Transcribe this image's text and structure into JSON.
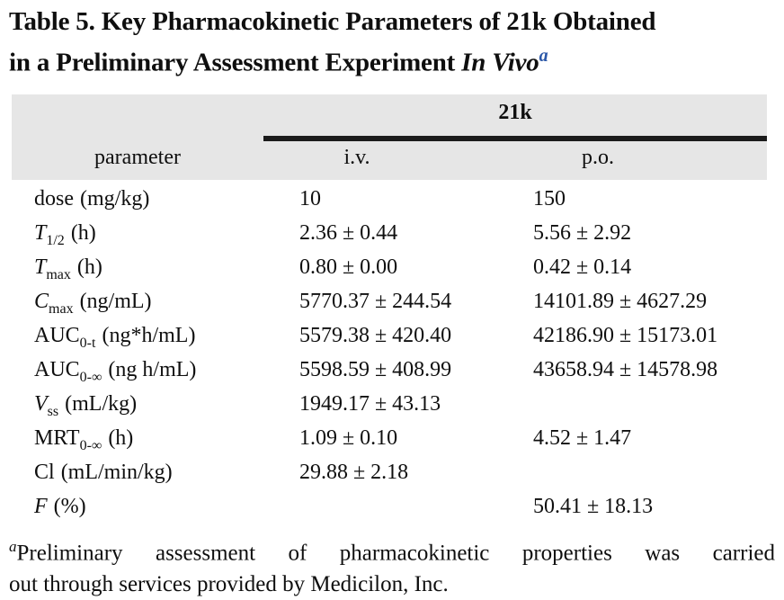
{
  "colors": {
    "header_bg": "#e6e6e6",
    "accent_blue": "#2b57a8",
    "text": "#0f0f0f"
  },
  "title": {
    "line1": "Table 5. Key Pharmacokinetic Parameters of 21k Obtained",
    "line2_prefix": "in a Preliminary Assessment Experiment ",
    "line2_emph": "In Vivo",
    "superscript_marker": "a"
  },
  "table": {
    "group_header": "21k",
    "columns": {
      "parameter": "parameter",
      "iv": "i.v.",
      "po": "p.o."
    },
    "rows": [
      {
        "name": "dose",
        "label_base": "dose",
        "label_sub": "",
        "label_unit": "(mg/kg)",
        "iv": "10",
        "po": "150"
      },
      {
        "name": "t-half",
        "label_base": "T",
        "label_sub": "1/2",
        "label_unit": "(h)",
        "iv": "2.36 ± 0.44",
        "po": "5.56 ± 2.92"
      },
      {
        "name": "t-max",
        "label_base": "T",
        "label_sub": "max",
        "label_unit": "(h)",
        "iv": "0.80 ± 0.00",
        "po": "0.42 ± 0.14"
      },
      {
        "name": "c-max",
        "label_base": "C",
        "label_sub": "max",
        "label_unit": "(ng/mL)",
        "iv": "5770.37 ± 244.54",
        "po": "14101.89 ± 4627.29"
      },
      {
        "name": "auc-0-t",
        "label_base": "AUC",
        "label_sub": "0-t",
        "label_unit": "(ng*h/mL)",
        "iv": "5579.38 ± 420.40",
        "po": "42186.90 ± 15173.01"
      },
      {
        "name": "auc-0-inf",
        "label_base": "AUC",
        "label_sub": "0-∞",
        "label_unit": "(ng h/mL)",
        "iv": "5598.59 ± 408.99",
        "po": "43658.94 ± 14578.98"
      },
      {
        "name": "v-ss",
        "label_base": "V",
        "label_sub": "ss",
        "label_unit": "(mL/kg)",
        "iv": "1949.17 ± 43.13",
        "po": ""
      },
      {
        "name": "mrt-0-inf",
        "label_base": "MRT",
        "label_sub": "0-∞",
        "label_unit": "(h)",
        "iv": "1.09 ± 0.10",
        "po": "4.52 ± 1.47"
      },
      {
        "name": "cl",
        "label_base": "Cl",
        "label_sub": "",
        "label_unit": "(mL/min/kg)",
        "iv": "29.88 ± 2.18",
        "po": ""
      },
      {
        "name": "f",
        "label_base": "F",
        "label_sub": "",
        "label_unit": "(%)",
        "iv": "",
        "po": "50.41 ± 18.13"
      }
    ]
  },
  "footnote": {
    "marker": "a",
    "line1": "Preliminary assessment of pharmacokinetic properties was carried",
    "line2": "out through services provided by Medicilon, Inc."
  }
}
